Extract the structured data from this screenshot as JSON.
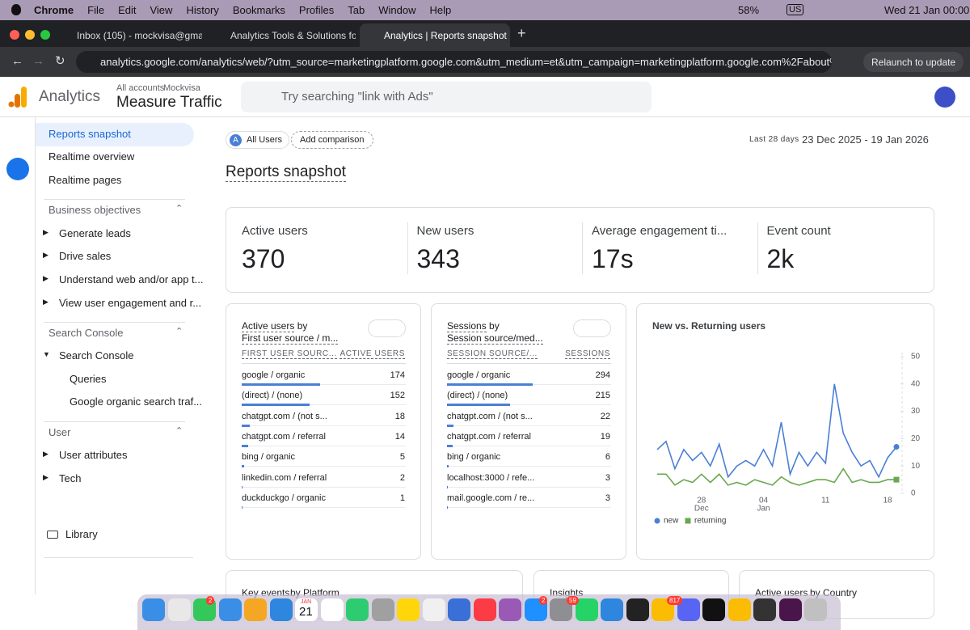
{
  "menubar": {
    "app": "Chrome",
    "menus": [
      "File",
      "Edit",
      "View",
      "History",
      "Bookmarks",
      "Profiles",
      "Tab",
      "Window",
      "Help"
    ],
    "battery": "58%",
    "input": "US",
    "datetime": "Wed 21 Jan  00:00"
  },
  "tabs": [
    "Inbox (105) - mockvisa@gma",
    "Analytics Tools & Solutions fo",
    "Analytics | Reports snapshot"
  ],
  "address": "analytics.google.com/analytics/web/?utm_source=marketingplatform.google.com&utm_medium=et&utm_campaign=marketingplatform.google.com%2Fabout%2Fan...",
  "relaunch": "Relaunch to update",
  "ga": {
    "product": "Analytics",
    "breadcrumb": "All accounts",
    "account": "Mockvisa",
    "property": "Measure Traffic",
    "search": "Try searching \"link with Ads\""
  },
  "sidebar": {
    "top": [
      "Reports snapshot",
      "Realtime overview",
      "Realtime pages"
    ],
    "sections": [
      {
        "title": "Business objectives",
        "items": [
          "Generate leads",
          "Drive sales",
          "Understand web and/or app t...",
          "View user engagement and r..."
        ]
      },
      {
        "title": "Search Console",
        "items": [
          "Search Console"
        ],
        "subitems": [
          "Queries",
          "Google organic search traf..."
        ]
      },
      {
        "title": "User",
        "items": [
          "User attributes",
          "Tech"
        ]
      }
    ],
    "library": "Library"
  },
  "toolbar": {
    "segment_icon": "A",
    "segment": "All Users",
    "compare": "Add comparison",
    "range_label": "Last 28 days",
    "range": "23 Dec 2025 - 19 Jan 2026"
  },
  "page_title": "Reports snapshot",
  "metrics": [
    {
      "label": "Active users",
      "value": "370"
    },
    {
      "label": "New users",
      "value": "343"
    },
    {
      "label": "Average engagement ti...",
      "value": "17s"
    },
    {
      "label": "Event count",
      "value": "2k"
    }
  ],
  "tables": [
    {
      "title": "Active users",
      "by": "by",
      "subtitle": "First user source / m...",
      "col1": "FIRST USER SOURC...",
      "col2": "ACTIVE USERS",
      "rows": [
        [
          "google / organic",
          174
        ],
        [
          "(direct) / (none)",
          152
        ],
        [
          "chatgpt.com / (not s...",
          18
        ],
        [
          "chatgpt.com / referral",
          14
        ],
        [
          "bing / organic",
          5
        ],
        [
          "linkedin.com / referral",
          2
        ],
        [
          "duckduckgo / organic",
          1
        ]
      ]
    },
    {
      "title": "Sessions",
      "by": "by",
      "subtitle": "Session source/med...",
      "col1": "SESSION SOURCE/...",
      "col2": "SESSIONS",
      "rows": [
        [
          "google / organic",
          294
        ],
        [
          "(direct) / (none)",
          215
        ],
        [
          "chatgpt.com / (not s...",
          22
        ],
        [
          "chatgpt.com / referral",
          19
        ],
        [
          "bing / organic",
          6
        ],
        [
          "localhost:3000 / refe...",
          3
        ],
        [
          "mail.google.com / re...",
          3
        ]
      ]
    }
  ],
  "chart_data": {
    "type": "line",
    "title": "New vs. Returning users",
    "categories": [
      null,
      null,
      null,
      null,
      null,
      "28",
      null,
      null,
      null,
      null,
      null,
      null,
      "04",
      null,
      null,
      null,
      null,
      null,
      null,
      "11",
      null,
      null,
      null,
      null,
      null,
      null,
      "18",
      null
    ],
    "months": [
      null,
      null,
      null,
      null,
      null,
      "Dec",
      null,
      null,
      null,
      null,
      null,
      null,
      "Jan",
      null,
      null,
      null,
      null,
      null,
      null,
      null,
      null,
      null,
      null,
      null,
      null,
      null,
      null,
      null
    ],
    "series": [
      {
        "name": "new",
        "color": "#4a7fd6",
        "values": [
          16,
          19,
          9,
          16,
          12,
          15,
          10,
          18,
          6,
          10,
          12,
          10,
          16,
          10,
          26,
          7,
          15,
          10,
          15,
          11,
          40,
          22,
          15,
          10,
          12,
          6,
          13,
          17
        ]
      },
      {
        "name": "returning",
        "color": "#6aa84f",
        "values": [
          7,
          7,
          3,
          5,
          4,
          7,
          4,
          7,
          3,
          4,
          3,
          5,
          4,
          3,
          6,
          4,
          3,
          4,
          5,
          5,
          4,
          9,
          4,
          5,
          4,
          4,
          5,
          5
        ]
      }
    ],
    "ylim": [
      0,
      50
    ],
    "yticks": [
      0,
      10,
      20,
      30,
      40,
      50
    ]
  },
  "bottom_cards": [
    {
      "title": "Key events",
      "by": "by Platform"
    },
    {
      "title": "Insights"
    },
    {
      "title": "Active users",
      "by": "by Country"
    }
  ],
  "dock": {
    "calendar_month": "JAN",
    "calendar_day": "21",
    "badges": [
      "2",
      "2",
      "59",
      "817"
    ]
  }
}
